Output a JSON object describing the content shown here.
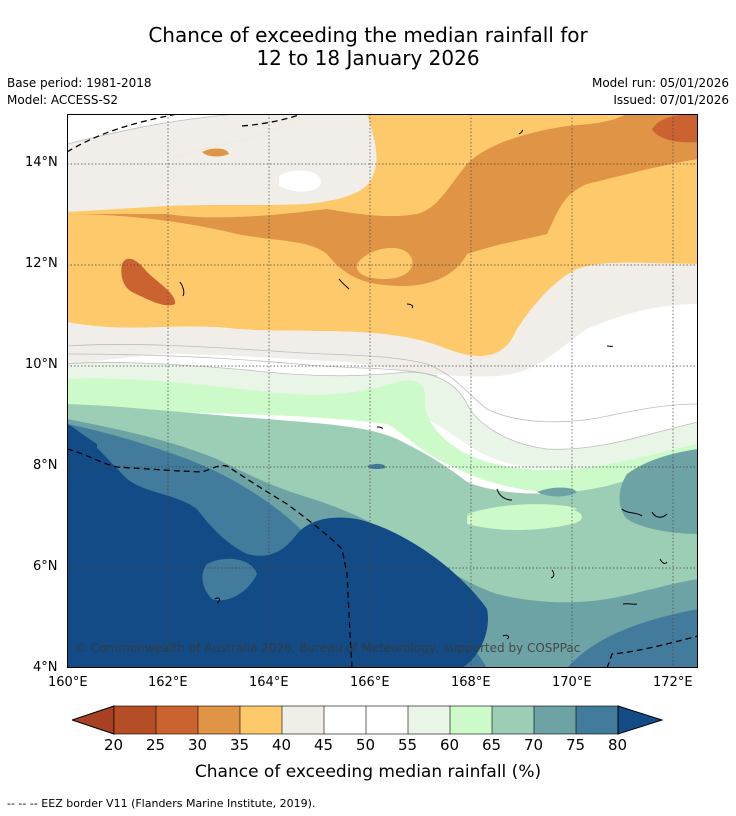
{
  "title": {
    "line1": "Chance of exceeding the median rainfall for",
    "line2": "12 to 18 January 2026"
  },
  "meta": {
    "base_period": "Base period: 1981-2018",
    "model": "Model: ACCESS-S2",
    "model_run": "Model run: 05/01/2026",
    "issued": "Issued: 07/01/2026"
  },
  "map": {
    "lat_labels": [
      "14°N",
      "12°N",
      "10°N",
      "8°N",
      "6°N",
      "4°N"
    ],
    "lon_labels": [
      "160°E",
      "162°E",
      "164°E",
      "166°E",
      "168°E",
      "170°E",
      "172°E"
    ],
    "copyright": "© Commonwealth of Australia 2026, Bureau of Meteorology, supported by COSPPac",
    "colors": {
      "c15": "#a64124",
      "c20": "#b44e27",
      "c25": "#cb6331",
      "c30": "#e09445",
      "c35": "#fdc96a",
      "c40": "#f1ede8",
      "c45": "#ffffff",
      "c50": "#ffffff",
      "c55": "#e9f5e6",
      "c60": "#ccfbc9",
      "c65": "#9bceb5",
      "c70": "#6da3a5",
      "c75": "#427b9b",
      "c80": "#124b85"
    }
  },
  "colorbar": {
    "ticks": [
      "20",
      "25",
      "30",
      "35",
      "40",
      "45",
      "50",
      "55",
      "60",
      "65",
      "70",
      "75",
      "80"
    ],
    "title": "Chance of exceeding median rainfall (%)"
  },
  "footnote": "--  --  -- EEZ border V11 (Flanders Marine Institute, 2019)."
}
